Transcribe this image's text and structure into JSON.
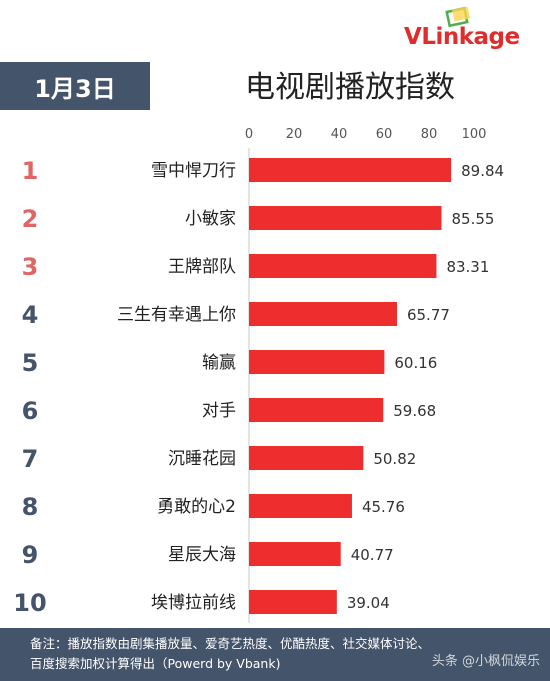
{
  "brand": {
    "logo_text_v": "V",
    "logo_text_rest": "Linkage",
    "accent": "#e02c2c"
  },
  "header": {
    "date": "1月3日",
    "title": "电视剧播放指数"
  },
  "colors": {
    "bar": "#ee2e2e",
    "rank_top": "#e06666",
    "rank_other": "#44546a",
    "badge_bg": "#44546a"
  },
  "chart_data": {
    "type": "bar",
    "orientation": "horizontal",
    "title": "电视剧播放指数",
    "xlim": [
      0,
      100
    ],
    "xticks": [
      0,
      20,
      40,
      60,
      80,
      100
    ],
    "axis_position": "top",
    "grid": false,
    "ranks": [
      "1",
      "2",
      "3",
      "4",
      "5",
      "6",
      "7",
      "8",
      "9",
      "10"
    ],
    "categories": [
      "雪中悍刀行",
      "小敏家",
      "王牌部队",
      "三生有幸遇上你",
      "输赢",
      "对手",
      "沉睡花园",
      "勇敢的心2",
      "星辰大海",
      "埃博拉前线"
    ],
    "values": [
      89.84,
      85.55,
      83.31,
      65.77,
      60.16,
      59.68,
      50.82,
      45.76,
      40.77,
      39.04
    ]
  },
  "footer": {
    "line1": "备注：播放指数由剧集播放量、爱奇艺热度、优酷热度、社交媒体讨论、",
    "line2": "百度搜索加权计算得出（Powerd by Vbank)",
    "watermark": "头条 @小枫侃娱乐"
  }
}
